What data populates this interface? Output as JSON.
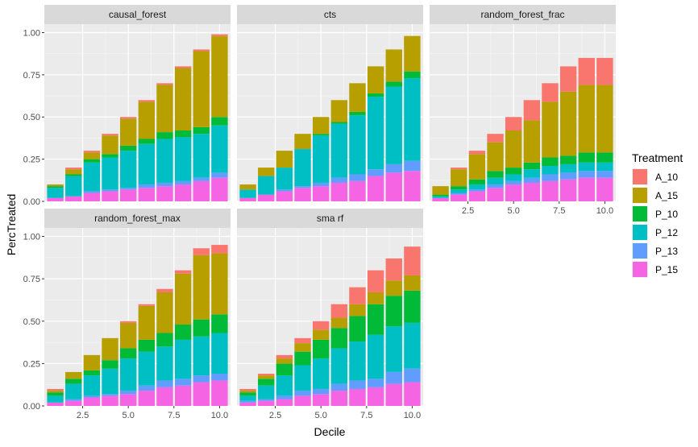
{
  "chart_data": {
    "type": "bar",
    "stacked": true,
    "faceted": true,
    "xlabel": "Decile",
    "ylabel": "PercTreated",
    "ylim": [
      0,
      1.05
    ],
    "xlim": [
      0.4,
      10.6
    ],
    "x_ticks": [
      2.5,
      5.0,
      7.5,
      10.0
    ],
    "x_tick_labels": [
      "2.5",
      "5.0",
      "7.5",
      "10.0"
    ],
    "y_ticks": [
      0,
      0.25,
      0.5,
      0.75,
      1.0
    ],
    "y_tick_labels": [
      "0.00",
      "0.25",
      "0.50",
      "0.75",
      "1.00"
    ],
    "grid": true,
    "x": [
      1,
      2,
      3,
      4,
      5,
      6,
      7,
      8,
      9,
      10
    ],
    "legend": {
      "title": "Treatment",
      "position": "right",
      "stack_order_bottom_to_top": [
        "P_15",
        "P_13",
        "P_12",
        "P_10",
        "A_15",
        "A_10"
      ],
      "entries": [
        {
          "name": "A_10",
          "color": "#F8766D"
        },
        {
          "name": "A_15",
          "color": "#B79F00"
        },
        {
          "name": "P_10",
          "color": "#00BA38"
        },
        {
          "name": "P_12",
          "color": "#00BFC4"
        },
        {
          "name": "P_13",
          "color": "#619CFF"
        },
        {
          "name": "P_15",
          "color": "#F564E3"
        }
      ]
    },
    "facets": [
      {
        "title": "causal_forest",
        "series": [
          {
            "name": "P_15",
            "values": [
              0.02,
              0.03,
              0.05,
              0.06,
              0.07,
              0.08,
              0.09,
              0.1,
              0.12,
              0.14
            ]
          },
          {
            "name": "P_13",
            "values": [
              0.0,
              0.0,
              0.01,
              0.01,
              0.01,
              0.02,
              0.02,
              0.02,
              0.02,
              0.03
            ]
          },
          {
            "name": "P_12",
            "values": [
              0.06,
              0.12,
              0.17,
              0.19,
              0.22,
              0.24,
              0.26,
              0.26,
              0.26,
              0.28
            ]
          },
          {
            "name": "P_10",
            "values": [
              0.01,
              0.01,
              0.02,
              0.02,
              0.03,
              0.03,
              0.04,
              0.04,
              0.04,
              0.05
            ]
          },
          {
            "name": "A_15",
            "values": [
              0.01,
              0.03,
              0.04,
              0.11,
              0.16,
              0.22,
              0.28,
              0.37,
              0.45,
              0.48
            ]
          },
          {
            "name": "A_10",
            "values": [
              0.0,
              0.01,
              0.01,
              0.01,
              0.01,
              0.01,
              0.01,
              0.01,
              0.01,
              0.01
            ]
          }
        ]
      },
      {
        "title": "cts",
        "series": [
          {
            "name": "P_15",
            "values": [
              0.02,
              0.04,
              0.06,
              0.08,
              0.09,
              0.11,
              0.12,
              0.15,
              0.17,
              0.18
            ]
          },
          {
            "name": "P_13",
            "values": [
              0.0,
              0.0,
              0.01,
              0.01,
              0.02,
              0.03,
              0.04,
              0.04,
              0.05,
              0.06
            ]
          },
          {
            "name": "P_12",
            "values": [
              0.05,
              0.11,
              0.13,
              0.22,
              0.28,
              0.32,
              0.35,
              0.43,
              0.46,
              0.49
            ]
          },
          {
            "name": "P_10",
            "values": [
              0.0,
              0.0,
              0.0,
              0.0,
              0.01,
              0.01,
              0.02,
              0.02,
              0.03,
              0.04
            ]
          },
          {
            "name": "A_15",
            "values": [
              0.03,
              0.05,
              0.1,
              0.09,
              0.1,
              0.13,
              0.17,
              0.16,
              0.19,
              0.21
            ]
          },
          {
            "name": "A_10",
            "values": [
              0.0,
              0.0,
              0.0,
              0.0,
              0.0,
              0.0,
              0.0,
              0.0,
              0.0,
              0.0
            ]
          }
        ]
      },
      {
        "title": "random_forest_frac",
        "series": [
          {
            "name": "P_15",
            "values": [
              0.02,
              0.04,
              0.06,
              0.08,
              0.1,
              0.11,
              0.12,
              0.13,
              0.14,
              0.14
            ]
          },
          {
            "name": "P_13",
            "values": [
              0.0,
              0.01,
              0.01,
              0.02,
              0.02,
              0.03,
              0.04,
              0.04,
              0.04,
              0.04
            ]
          },
          {
            "name": "P_12",
            "values": [
              0.01,
              0.02,
              0.03,
              0.04,
              0.04,
              0.05,
              0.05,
              0.05,
              0.05,
              0.05
            ]
          },
          {
            "name": "P_10",
            "values": [
              0.01,
              0.02,
              0.03,
              0.04,
              0.04,
              0.04,
              0.05,
              0.05,
              0.06,
              0.06
            ]
          },
          {
            "name": "A_15",
            "values": [
              0.05,
              0.1,
              0.15,
              0.17,
              0.22,
              0.25,
              0.33,
              0.38,
              0.4,
              0.4
            ]
          },
          {
            "name": "A_10",
            "values": [
              0.0,
              0.01,
              0.02,
              0.05,
              0.08,
              0.12,
              0.11,
              0.15,
              0.16,
              0.16
            ]
          }
        ]
      },
      {
        "title": "random_forest_max",
        "series": [
          {
            "name": "P_15",
            "values": [
              0.02,
              0.03,
              0.05,
              0.06,
              0.07,
              0.09,
              0.11,
              0.12,
              0.14,
              0.15
            ]
          },
          {
            "name": "P_13",
            "values": [
              0.0,
              0.01,
              0.01,
              0.01,
              0.02,
              0.03,
              0.04,
              0.04,
              0.04,
              0.04
            ]
          },
          {
            "name": "P_12",
            "values": [
              0.04,
              0.09,
              0.12,
              0.15,
              0.19,
              0.2,
              0.2,
              0.23,
              0.23,
              0.24
            ]
          },
          {
            "name": "P_10",
            "values": [
              0.02,
              0.03,
              0.03,
              0.05,
              0.06,
              0.07,
              0.08,
              0.09,
              0.1,
              0.11
            ]
          },
          {
            "name": "A_15",
            "values": [
              0.01,
              0.04,
              0.09,
              0.13,
              0.15,
              0.2,
              0.24,
              0.3,
              0.38,
              0.36
            ]
          },
          {
            "name": "A_10",
            "values": [
              0.01,
              0.0,
              0.0,
              0.0,
              0.01,
              0.01,
              0.02,
              0.02,
              0.04,
              0.05
            ]
          }
        ]
      },
      {
        "title": "sma rf",
        "series": [
          {
            "name": "P_15",
            "values": [
              0.02,
              0.03,
              0.04,
              0.06,
              0.07,
              0.09,
              0.1,
              0.11,
              0.13,
              0.14
            ]
          },
          {
            "name": "P_13",
            "values": [
              0.01,
              0.01,
              0.02,
              0.03,
              0.03,
              0.04,
              0.05,
              0.05,
              0.07,
              0.08
            ]
          },
          {
            "name": "P_12",
            "values": [
              0.03,
              0.08,
              0.12,
              0.15,
              0.18,
              0.21,
              0.23,
              0.26,
              0.27,
              0.27
            ]
          },
          {
            "name": "P_10",
            "values": [
              0.02,
              0.04,
              0.07,
              0.08,
              0.11,
              0.12,
              0.15,
              0.18,
              0.18,
              0.19
            ]
          },
          {
            "name": "A_15",
            "values": [
              0.01,
              0.02,
              0.03,
              0.05,
              0.06,
              0.06,
              0.07,
              0.07,
              0.09,
              0.09
            ]
          },
          {
            "name": "A_10",
            "values": [
              0.01,
              0.01,
              0.02,
              0.03,
              0.05,
              0.08,
              0.1,
              0.13,
              0.13,
              0.17
            ]
          }
        ]
      }
    ]
  }
}
